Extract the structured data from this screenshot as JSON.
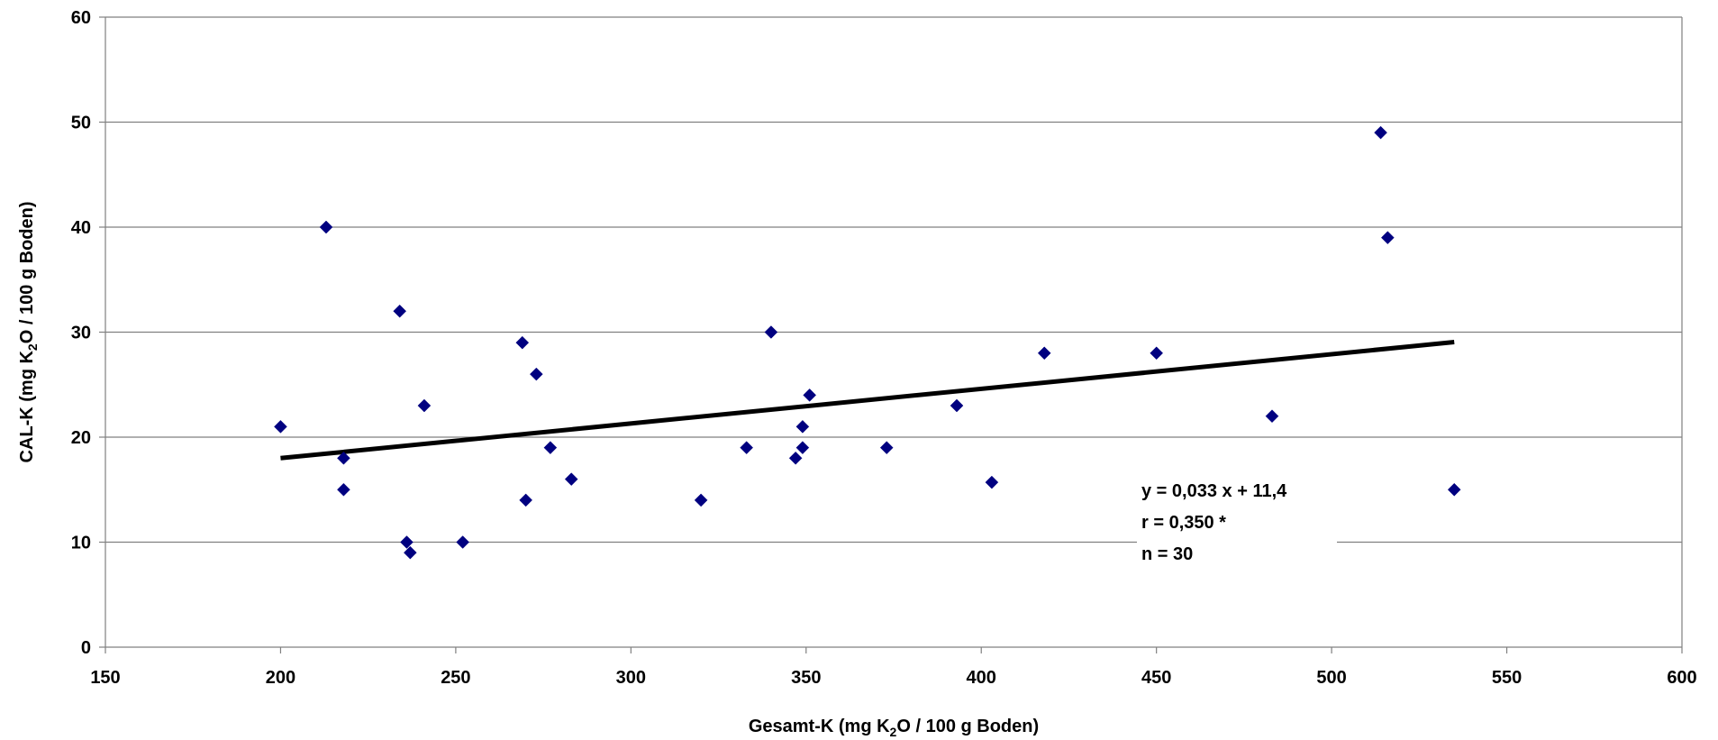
{
  "chart_data": {
    "type": "scatter",
    "title": "",
    "xlabel": {
      "before": "Gesamt-K (mg K",
      "sub": "2",
      "after": "O / 100 g Boden)"
    },
    "ylabel": {
      "before": "CAL-K (mg K",
      "sub": "2",
      "after": "O / 100 g Boden)"
    },
    "xlim": [
      150,
      600
    ],
    "ylim": [
      0,
      60
    ],
    "xticks": [
      150,
      200,
      250,
      300,
      350,
      400,
      450,
      500,
      550,
      600
    ],
    "yticks": [
      0,
      10,
      20,
      30,
      40,
      50,
      60
    ],
    "grid": {
      "horizontal": true,
      "vertical": false
    },
    "legend": "none",
    "marker_color": "#000080",
    "trendline_color": "#000000",
    "series": [
      {
        "points": [
          [
            200,
            21
          ],
          [
            213,
            40
          ],
          [
            218,
            18
          ],
          [
            218,
            15
          ],
          [
            234,
            32
          ],
          [
            236,
            10
          ],
          [
            237,
            9
          ],
          [
            241,
            23
          ],
          [
            252,
            10
          ],
          [
            269,
            29
          ],
          [
            270,
            14
          ],
          [
            273,
            26
          ],
          [
            277,
            19
          ],
          [
            283,
            16
          ],
          [
            320,
            14
          ],
          [
            333,
            19
          ],
          [
            340,
            30
          ],
          [
            347,
            18
          ],
          [
            349,
            19
          ],
          [
            349,
            21
          ],
          [
            351,
            24
          ],
          [
            373,
            19
          ],
          [
            393,
            23
          ],
          [
            403,
            15.7
          ],
          [
            418,
            28
          ],
          [
            450,
            28
          ],
          [
            483,
            22
          ],
          [
            514,
            49
          ],
          [
            516,
            39
          ],
          [
            535,
            15
          ]
        ]
      }
    ],
    "trendline": {
      "x_start": 200,
      "x_end": 535,
      "slope": 0.033,
      "intercept": 11.4
    },
    "annotations": [
      "y = 0,033 x + 11,4",
      "r = 0,350 *",
      "n = 30"
    ]
  }
}
